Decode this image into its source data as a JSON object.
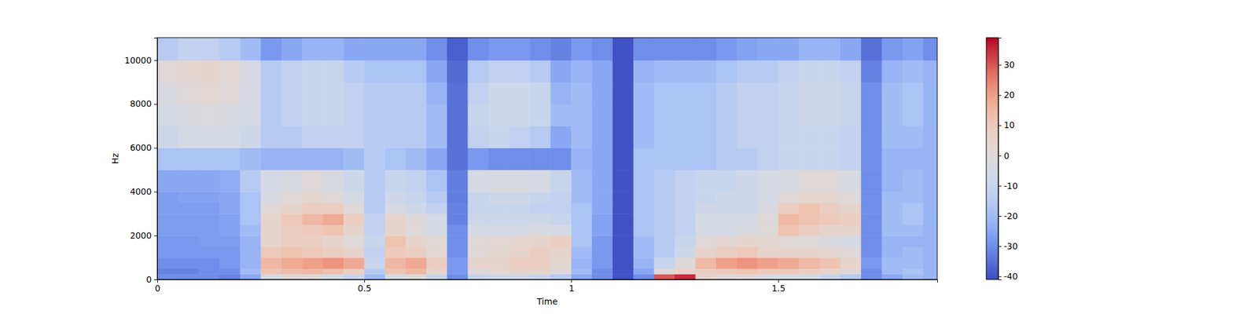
{
  "chart_data": {
    "type": "heatmap",
    "x_label": "Time",
    "y_label": "Hz",
    "xlim": [
      0,
      1.884
    ],
    "ylim": [
      0,
      11025
    ],
    "xticks": [
      0,
      0.5,
      1,
      1.5
    ],
    "yticks": [
      0,
      2000,
      4000,
      6000,
      8000,
      10000
    ],
    "x_bins": [
      0,
      0.05,
      0.1,
      0.15,
      0.2,
      0.25,
      0.3,
      0.35,
      0.4,
      0.45,
      0.5,
      0.55,
      0.6,
      0.65,
      0.7,
      0.75,
      0.8,
      0.85,
      0.9,
      0.95,
      1.0,
      1.05,
      1.1,
      1.15,
      1.2,
      1.25,
      1.3,
      1.35,
      1.4,
      1.45,
      1.5,
      1.55,
      1.6,
      1.65,
      1.7,
      1.75,
      1.8,
      1.85,
      1.884
    ],
    "y_bins": [
      0,
      250,
      500,
      1000,
      1500,
      2000,
      2500,
      3000,
      3500,
      4000,
      5000,
      6000,
      7000,
      8000,
      9000,
      10000,
      11025
    ],
    "values": [
      [
        -30,
        -30,
        -30,
        -32,
        -25,
        -5,
        0,
        0,
        -5,
        -10,
        -20,
        -5,
        0,
        -10,
        -30,
        -10,
        -8,
        -8,
        -10,
        -15,
        -25,
        -30,
        -40,
        -30,
        30,
        35,
        5,
        0,
        0,
        -5,
        -5,
        -5,
        -10,
        -15,
        -30,
        -25,
        -20,
        -22
      ],
      [
        -32,
        -32,
        -30,
        -30,
        -20,
        12,
        14,
        15,
        13,
        8,
        -15,
        12,
        15,
        5,
        -28,
        0,
        3,
        5,
        5,
        0,
        -20,
        -30,
        -40,
        -25,
        0,
        5,
        8,
        10,
        12,
        10,
        10,
        8,
        5,
        0,
        -30,
        -20,
        -18,
        -22
      ],
      [
        -30,
        -30,
        -30,
        -28,
        -22,
        15,
        18,
        20,
        22,
        18,
        -10,
        15,
        18,
        8,
        -28,
        5,
        5,
        8,
        8,
        3,
        -22,
        -28,
        -40,
        -22,
        -10,
        0,
        15,
        20,
        22,
        20,
        18,
        15,
        12,
        5,
        -28,
        -20,
        -20,
        -22
      ],
      [
        -28,
        -28,
        -28,
        -28,
        -22,
        10,
        12,
        10,
        8,
        5,
        -12,
        10,
        8,
        2,
        -30,
        0,
        3,
        5,
        8,
        5,
        -20,
        -28,
        -40,
        -20,
        -15,
        -8,
        5,
        8,
        10,
        5,
        5,
        5,
        3,
        0,
        -30,
        -22,
        -20,
        -22
      ],
      [
        -28,
        -28,
        -27,
        -27,
        -22,
        5,
        8,
        8,
        5,
        0,
        -10,
        12,
        5,
        0,
        -30,
        0,
        2,
        3,
        5,
        8,
        -18,
        -28,
        -40,
        -20,
        -15,
        -10,
        0,
        3,
        5,
        3,
        0,
        0,
        -3,
        -5,
        -30,
        -22,
        -22,
        -22
      ],
      [
        -27,
        -27,
        -27,
        -26,
        -20,
        5,
        8,
        10,
        12,
        5,
        -12,
        5,
        0,
        -5,
        -30,
        -5,
        -5,
        -5,
        -3,
        -5,
        -18,
        -26,
        -40,
        -18,
        -15,
        -12,
        -5,
        -5,
        -3,
        0,
        12,
        8,
        5,
        5,
        -30,
        -20,
        -20,
        -22
      ],
      [
        -27,
        -27,
        -27,
        -26,
        -18,
        5,
        10,
        15,
        18,
        8,
        -12,
        5,
        0,
        -5,
        -32,
        -8,
        -8,
        -8,
        -8,
        -10,
        -18,
        -26,
        -40,
        -18,
        -15,
        -12,
        -5,
        -5,
        -5,
        0,
        15,
        12,
        10,
        8,
        -30,
        -20,
        -18,
        -22
      ],
      [
        -27,
        -27,
        -27,
        -25,
        -18,
        0,
        5,
        8,
        8,
        0,
        -15,
        -5,
        -8,
        -12,
        -32,
        -10,
        -10,
        -10,
        -12,
        -12,
        -18,
        -25,
        -40,
        -18,
        -15,
        -12,
        -8,
        -8,
        -8,
        -3,
        8,
        12,
        8,
        5,
        -30,
        -20,
        -18,
        -22
      ],
      [
        -27,
        -26,
        -26,
        -25,
        -18,
        -3,
        0,
        3,
        0,
        -5,
        -15,
        -8,
        -10,
        -15,
        -33,
        -10,
        -8,
        -8,
        -10,
        -12,
        -20,
        -25,
        -40,
        -18,
        -15,
        -12,
        -10,
        -8,
        -8,
        -5,
        0,
        3,
        3,
        0,
        -30,
        -20,
        -20,
        -22
      ],
      [
        -25,
        -25,
        -25,
        -24,
        -15,
        -5,
        -3,
        0,
        -3,
        -8,
        -15,
        -10,
        -12,
        -18,
        -33,
        -5,
        -3,
        -3,
        -5,
        -10,
        -20,
        -25,
        -40,
        -18,
        -15,
        -12,
        -10,
        -10,
        -8,
        -5,
        -3,
        0,
        0,
        -3,
        -30,
        -22,
        -20,
        -22
      ],
      [
        -18,
        -18,
        -18,
        -18,
        -20,
        -22,
        -22,
        -22,
        -22,
        -20,
        -15,
        -18,
        -20,
        -25,
        -35,
        -28,
        -30,
        -30,
        -30,
        -30,
        -22,
        -25,
        -40,
        -18,
        -18,
        -18,
        -18,
        -15,
        -15,
        -12,
        -10,
        -10,
        -10,
        -12,
        -30,
        -22,
        -22,
        -22
      ],
      [
        -8,
        -5,
        -5,
        -5,
        -8,
        -15,
        -15,
        -12,
        -12,
        -12,
        -15,
        -15,
        -15,
        -20,
        -35,
        -12,
        -10,
        -12,
        -15,
        -25,
        -20,
        -25,
        -40,
        -20,
        -18,
        -18,
        -18,
        -15,
        -12,
        -12,
        -10,
        -10,
        -10,
        -12,
        -30,
        -20,
        -20,
        -22
      ],
      [
        -5,
        -3,
        -2,
        -3,
        -5,
        -15,
        -12,
        -10,
        -10,
        -12,
        -15,
        -15,
        -15,
        -20,
        -35,
        -10,
        -8,
        -8,
        -10,
        -20,
        -20,
        -25,
        -40,
        -20,
        -18,
        -18,
        -18,
        -15,
        -12,
        -12,
        -10,
        -8,
        -8,
        -10,
        -30,
        -20,
        -18,
        -22
      ],
      [
        -3,
        0,
        2,
        0,
        -5,
        -15,
        -12,
        -10,
        -10,
        -12,
        -15,
        -15,
        -15,
        -22,
        -35,
        -12,
        -8,
        -8,
        -10,
        -22,
        -20,
        -25,
        -40,
        -20,
        -18,
        -18,
        -18,
        -15,
        -12,
        -12,
        -10,
        -8,
        -8,
        -10,
        -30,
        -20,
        -18,
        -22
      ],
      [
        0,
        3,
        5,
        2,
        -5,
        -15,
        -12,
        -10,
        -10,
        -15,
        -18,
        -18,
        -18,
        -25,
        -36,
        -15,
        -12,
        -12,
        -15,
        -25,
        -22,
        -25,
        -40,
        -22,
        -20,
        -20,
        -20,
        -18,
        -15,
        -15,
        -12,
        -10,
        -10,
        -12,
        -32,
        -22,
        -20,
        -22
      ],
      [
        -15,
        -12,
        -12,
        -15,
        -20,
        -28,
        -25,
        -22,
        -22,
        -25,
        -25,
        -25,
        -25,
        -30,
        -38,
        -30,
        -28,
        -28,
        -30,
        -32,
        -28,
        -30,
        -40,
        -30,
        -30,
        -30,
        -30,
        -28,
        -26,
        -25,
        -25,
        -22,
        -22,
        -25,
        -35,
        -28,
        -26,
        -30
      ]
    ],
    "colorbar": {
      "lim": [
        -41,
        39
      ],
      "ticks": [
        -40,
        -30,
        -20,
        -10,
        0,
        10,
        20,
        30
      ]
    }
  }
}
